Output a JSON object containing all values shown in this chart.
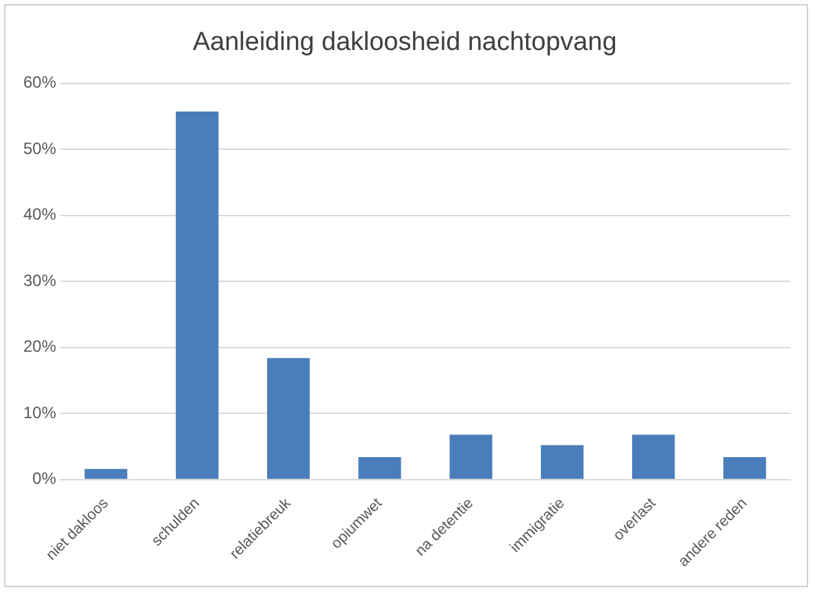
{
  "chart_data": {
    "type": "bar",
    "title": "Aanleiding dakloosheid nachtopvang",
    "categories": [
      "niet dakloos",
      "schulden",
      "relatiebreuk",
      "opiumwet",
      "na detentie",
      "immigratie",
      "overlast",
      "andere reden"
    ],
    "values": [
      1.6,
      55.7,
      18.4,
      3.4,
      6.8,
      5.2,
      6.8,
      3.4
    ],
    "color": "#4a7ebb",
    "ylim": [
      0,
      60
    ],
    "yticks": [
      {
        "value": 0,
        "label": "0%"
      },
      {
        "value": 10,
        "label": "10%"
      },
      {
        "value": 20,
        "label": "20%"
      },
      {
        "value": 30,
        "label": "30%"
      },
      {
        "value": 40,
        "label": "40%"
      },
      {
        "value": 50,
        "label": "50%"
      },
      {
        "value": 60,
        "label": "60%"
      }
    ],
    "grid": "y"
  }
}
